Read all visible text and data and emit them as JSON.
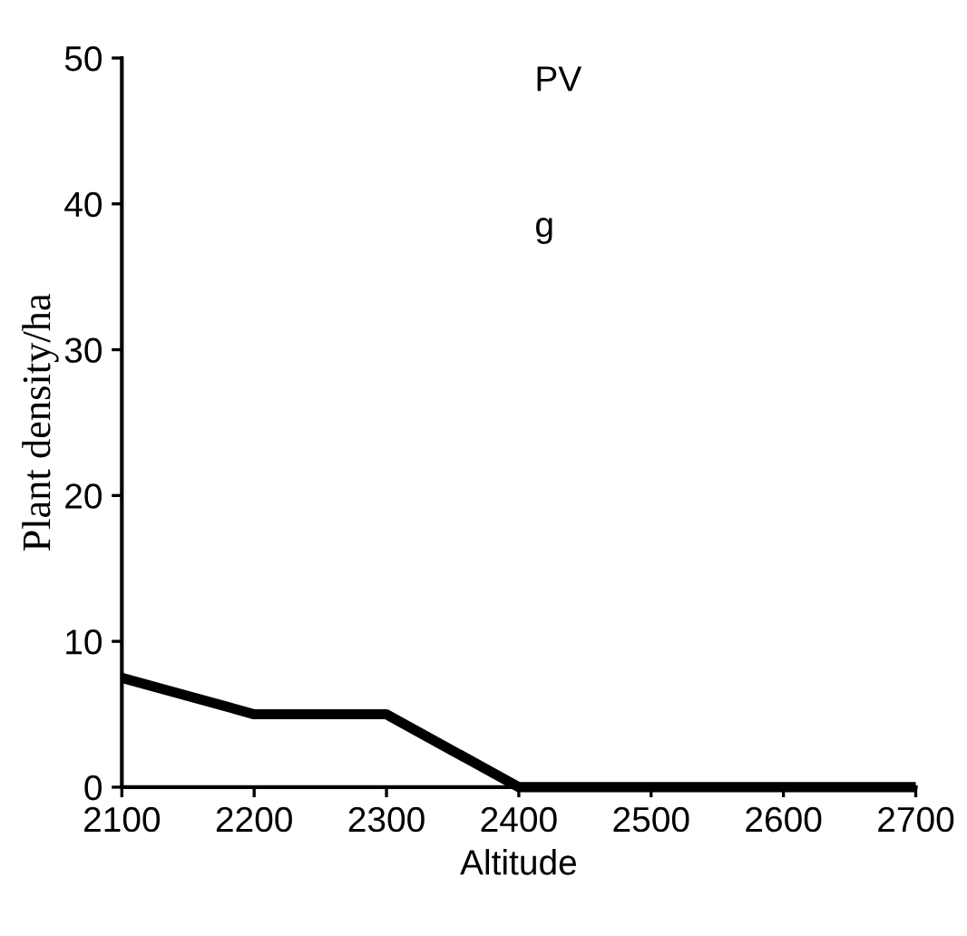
{
  "chart_data": {
    "type": "line",
    "xlabel": "Altitude",
    "ylabel": "Plant density/ha",
    "annotations": [
      "PV",
      "g"
    ],
    "x": [
      2100,
      2200,
      2300,
      2400,
      2500,
      2600,
      2700
    ],
    "series": [
      {
        "color": "#000000",
        "values": [
          7.5,
          5,
          5,
          0,
          0,
          0,
          0
        ]
      }
    ],
    "xlim": [
      2100,
      2700
    ],
    "xticks": [
      2100,
      2200,
      2300,
      2400,
      2500,
      2600,
      2700
    ],
    "ylim": [
      0,
      50
    ],
    "yticks": [
      0,
      10,
      20,
      30,
      40,
      50
    ],
    "grid": false,
    "legend": false,
    "marker": "none",
    "line_style": "solid"
  }
}
